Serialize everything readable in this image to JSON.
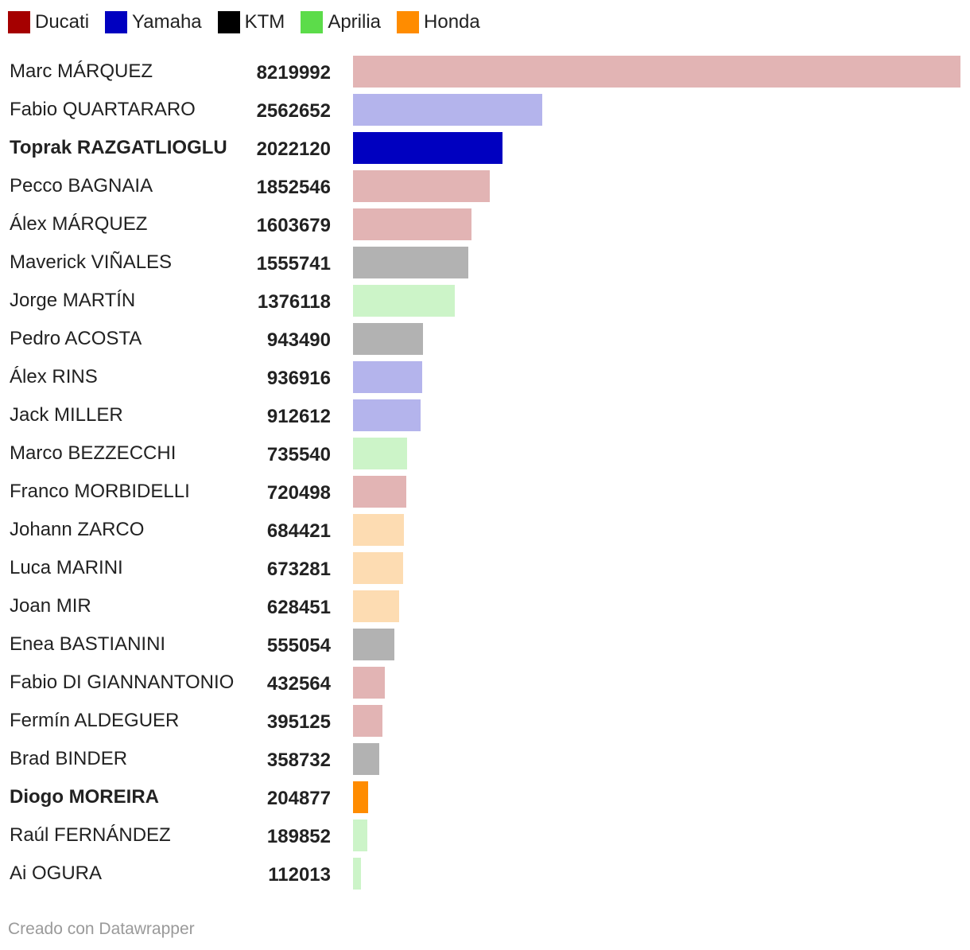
{
  "legend": [
    {
      "label": "Ducati",
      "color": "#a50000"
    },
    {
      "label": "Yamaha",
      "color": "#0000c0"
    },
    {
      "label": "KTM",
      "color": "#000000"
    },
    {
      "label": "Aprilia",
      "color": "#5cdc4a"
    },
    {
      "label": "Honda",
      "color": "#ff8c00"
    }
  ],
  "chart_data": {
    "type": "bar",
    "orientation": "horizontal",
    "title": "",
    "xlabel": "",
    "ylabel": "",
    "xlim": [
      0,
      8219992
    ],
    "grid": false,
    "legend_position": "top-left",
    "rows": [
      {
        "rider": "Marc MÁRQUEZ",
        "value": 8219992,
        "brand": "Ducati",
        "color": "#e2b4b4",
        "highlight": false
      },
      {
        "rider": "Fabio QUARTARARO",
        "value": 2562652,
        "brand": "Yamaha",
        "color": "#b4b4ec",
        "highlight": false
      },
      {
        "rider": "Toprak RAZGATLIOGLU",
        "value": 2022120,
        "brand": "Yamaha",
        "color": "#0000c0",
        "highlight": true
      },
      {
        "rider": "Pecco BAGNAIA",
        "value": 1852546,
        "brand": "Ducati",
        "color": "#e2b4b4",
        "highlight": false
      },
      {
        "rider": "Álex MÁRQUEZ",
        "value": 1603679,
        "brand": "Ducati",
        "color": "#e2b4b4",
        "highlight": false
      },
      {
        "rider": "Maverick VIÑALES",
        "value": 1555741,
        "brand": "KTM",
        "color": "#b2b2b2",
        "highlight": false
      },
      {
        "rider": "Jorge MARTÍN",
        "value": 1376118,
        "brand": "Aprilia",
        "color": "#ccf4c8",
        "highlight": false
      },
      {
        "rider": "Pedro ACOSTA",
        "value": 943490,
        "brand": "KTM",
        "color": "#b2b2b2",
        "highlight": false
      },
      {
        "rider": "Álex RINS",
        "value": 936916,
        "brand": "Yamaha",
        "color": "#b4b4ec",
        "highlight": false
      },
      {
        "rider": "Jack MILLER",
        "value": 912612,
        "brand": "Yamaha",
        "color": "#b4b4ec",
        "highlight": false
      },
      {
        "rider": "Marco BEZZECCHI",
        "value": 735540,
        "brand": "Aprilia",
        "color": "#ccf4c8",
        "highlight": false
      },
      {
        "rider": "Franco MORBIDELLI",
        "value": 720498,
        "brand": "Ducati",
        "color": "#e2b4b4",
        "highlight": false
      },
      {
        "rider": "Johann ZARCO",
        "value": 684421,
        "brand": "Honda",
        "color": "#fddcb2",
        "highlight": false
      },
      {
        "rider": "Luca MARINI",
        "value": 673281,
        "brand": "Honda",
        "color": "#fddcb2",
        "highlight": false
      },
      {
        "rider": "Joan MIR",
        "value": 628451,
        "brand": "Honda",
        "color": "#fddcb2",
        "highlight": false
      },
      {
        "rider": "Enea BASTIANINI",
        "value": 555054,
        "brand": "KTM",
        "color": "#b2b2b2",
        "highlight": false
      },
      {
        "rider": "Fabio DI GIANNANTONIO",
        "value": 432564,
        "brand": "Ducati",
        "color": "#e2b4b4",
        "highlight": false
      },
      {
        "rider": "Fermín ALDEGUER",
        "value": 395125,
        "brand": "Ducati",
        "color": "#e2b4b4",
        "highlight": false
      },
      {
        "rider": "Brad BINDER",
        "value": 358732,
        "brand": "KTM",
        "color": "#b2b2b2",
        "highlight": false
      },
      {
        "rider": "Diogo MOREIRA",
        "value": 204877,
        "brand": "Honda",
        "color": "#ff8c00",
        "highlight": true
      },
      {
        "rider": "Raúl FERNÁNDEZ",
        "value": 189852,
        "brand": "Aprilia",
        "color": "#ccf4c8",
        "highlight": false
      },
      {
        "rider": "Ai OGURA",
        "value": 112013,
        "brand": "Aprilia",
        "color": "#ccf4c8",
        "highlight": false
      }
    ]
  },
  "footer": {
    "credit": "Creado con Datawrapper"
  }
}
